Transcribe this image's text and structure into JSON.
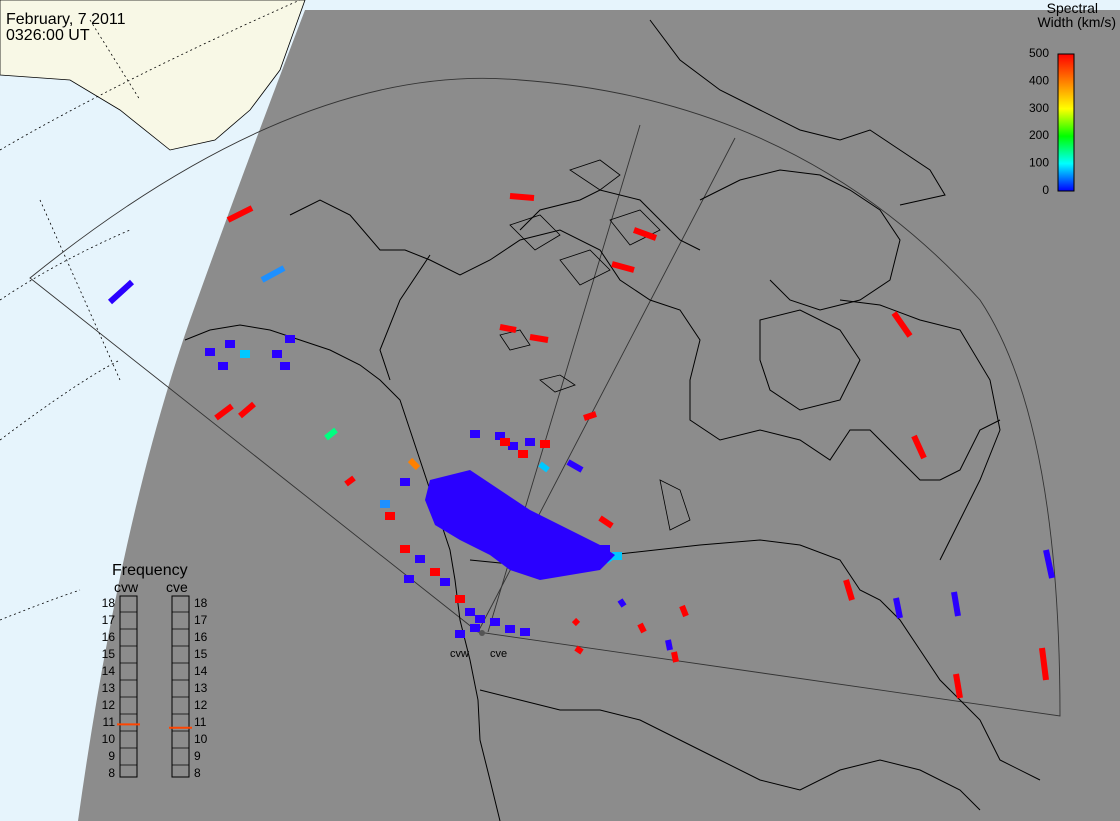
{
  "header": {
    "date": "February, 7 2011",
    "time": "0326:00 UT"
  },
  "colorbar": {
    "title_line1": "Spectral",
    "title_line2": "Width (km/s)",
    "ticks": [
      "500",
      "400",
      "300",
      "200",
      "100",
      "0"
    ],
    "stops": [
      "#ff0000",
      "#ff7f00",
      "#ffff00",
      "#00ff00",
      "#00ffff",
      "#0000ff"
    ]
  },
  "frequency_panel": {
    "title": "Frequency",
    "radars": [
      {
        "name": "cvw",
        "selected_mhz": 10.8
      },
      {
        "name": "cve",
        "selected_mhz": 10.6
      }
    ],
    "scale": [
      "18",
      "17",
      "16",
      "15",
      "14",
      "13",
      "12",
      "11",
      "10",
      "9",
      "8"
    ],
    "indicator_color": "#ff4500"
  },
  "sites": [
    {
      "label": "cvw"
    },
    {
      "label": "cve"
    }
  ],
  "colors": {
    "background_gray": "#8c8c8c",
    "ocean_day": "#e6f4fc",
    "land_day": "#f8f8e6",
    "coast": "#000000",
    "red": "#ff0000",
    "blue": "#2a00ff",
    "lightblue": "#1e90ff",
    "cyan": "#00c8ff",
    "green": "#00ff80",
    "orange": "#ff8000"
  }
}
